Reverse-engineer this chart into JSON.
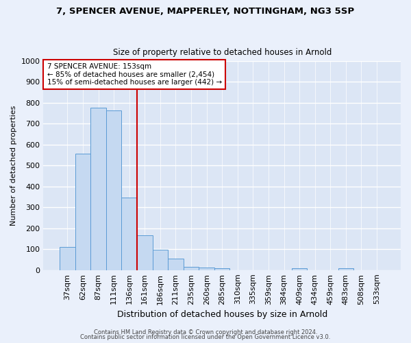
{
  "title1": "7, SPENCER AVENUE, MAPPERLEY, NOTTINGHAM, NG3 5SP",
  "title2": "Size of property relative to detached houses in Arnold",
  "xlabel": "Distribution of detached houses by size in Arnold",
  "ylabel": "Number of detached properties",
  "bar_labels": [
    "37sqm",
    "62sqm",
    "87sqm",
    "111sqm",
    "136sqm",
    "161sqm",
    "186sqm",
    "211sqm",
    "235sqm",
    "260sqm",
    "285sqm",
    "310sqm",
    "335sqm",
    "359sqm",
    "384sqm",
    "409sqm",
    "434sqm",
    "459sqm",
    "483sqm",
    "508sqm",
    "533sqm"
  ],
  "bar_values": [
    112,
    557,
    775,
    765,
    348,
    165,
    97,
    55,
    15,
    12,
    8,
    0,
    0,
    0,
    0,
    10,
    0,
    0,
    10,
    0,
    0
  ],
  "bar_color": "#c5d9f1",
  "bar_edge_color": "#5b9bd5",
  "annotation_title": "7 SPENCER AVENUE: 153sqm",
  "annotation_line1": "← 85% of detached houses are smaller (2,454)",
  "annotation_line2": "15% of semi-detached houses are larger (442) →",
  "vline_color": "#cc0000",
  "ylim": [
    0,
    1000
  ],
  "yticks": [
    0,
    100,
    200,
    300,
    400,
    500,
    600,
    700,
    800,
    900,
    1000
  ],
  "footer1": "Contains HM Land Registry data © Crown copyright and database right 2024.",
  "footer2": "Contains public sector information licensed under the Open Government Licence v3.0.",
  "bg_color": "#eaf0fb",
  "plot_bg_color": "#dce6f5"
}
